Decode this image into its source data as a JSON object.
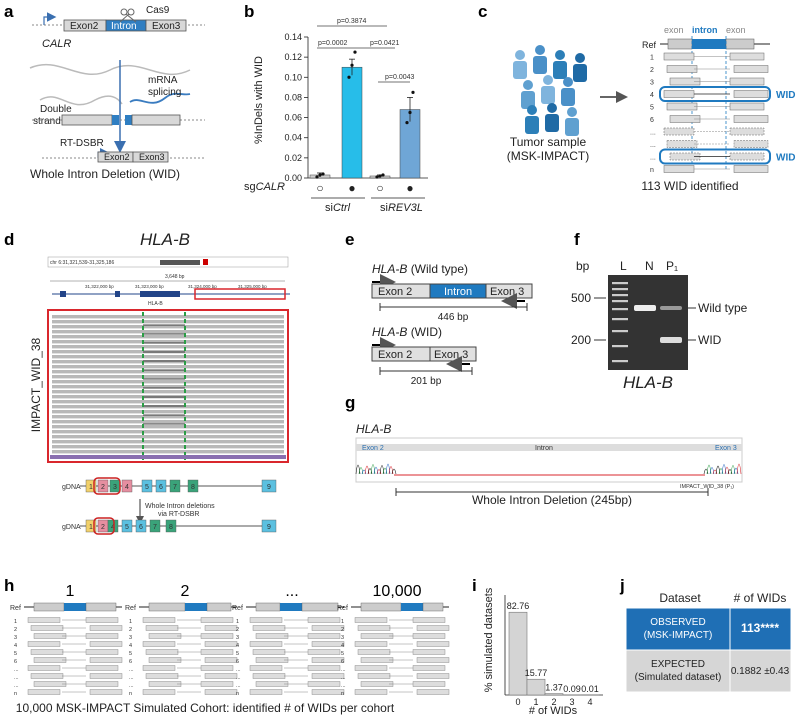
{
  "panels": {
    "a": {
      "label": "a",
      "gene": "CALR",
      "exon2": "Exon2",
      "intron": "Intron",
      "exon3": "Exon3",
      "cas9": "Cas9",
      "dsb": [
        "Double",
        "strand break"
      ],
      "mrna": [
        "mRNA",
        "splicing"
      ],
      "rtdsbr": "RT-DSBR",
      "caption": "Whole Intron Deletion (WID)"
    },
    "b": {
      "label": "b",
      "sg_label_prefix": "sg",
      "sg_label_gene": "CALR",
      "group1_prefix": "si",
      "group1_gene": "Ctrl",
      "group2_prefix": "si",
      "group2_gene": "REV3L",
      "sig": [
        "p=0.3874",
        "p=0.0002",
        "p=0.0421",
        "p=0.0043"
      ],
      "open_circle": "○",
      "filled_circle": "●"
    },
    "c": {
      "label": "c",
      "exon_left": "exon",
      "intron": "intron",
      "exon_right": "exon",
      "ref": "Ref",
      "rows": [
        "1",
        "2",
        "3",
        "4",
        "5",
        "6",
        "...",
        "...",
        "...",
        "n"
      ],
      "wid1": "WID",
      "wid2": "WID",
      "sample": [
        "Tumor sample",
        "(MSK-IMPACT)"
      ],
      "footer": "113 WID identified"
    },
    "d": {
      "label": "d",
      "title": "HLA-B",
      "locus": "chr 6:31,321,539-31,325,186",
      "span": "3,648 bp",
      "ticks": [
        "31,322,000 bp",
        "31,323,000 bp",
        "31,324,000 bp",
        "31,325,000 bp"
      ],
      "gene": "HLA-B",
      "side_label": "IMPACT_WID_38",
      "gdna": "gDNA",
      "exons_top": [
        "1",
        "2",
        "3",
        "4",
        "5",
        "6",
        "7",
        "8",
        "9"
      ],
      "exons_bottom": [
        "1",
        "2",
        "4",
        "5",
        "6",
        "7",
        "8",
        "9"
      ],
      "arrow_text": [
        "Whole Intron deletions",
        "via RT-DSBR"
      ]
    },
    "e": {
      "label": "e",
      "wt_gene": "HLA-B",
      "wt_suffix": "(Wild type)",
      "wt_exon2": "Exon 2",
      "wt_intron": "Intron",
      "wt_exon3": "Exon 3",
      "wt_size": "446 bp",
      "wid_gene": "HLA-B",
      "wid_suffix": "(WID)",
      "wid_exon2": "Exon 2",
      "wid_exon3": "Exon 3",
      "wid_size": "201 bp"
    },
    "f": {
      "label": "f",
      "bp": "bp",
      "lanes": [
        "L",
        "N",
        "P₁"
      ],
      "size500": "500",
      "size200": "200",
      "wt": "Wild type",
      "wid": "WID",
      "gene": "HLA-B"
    },
    "g": {
      "label": "g",
      "gene": "HLA-B",
      "exon2": "Exon 2",
      "intron": "Intron",
      "exon3": "Exon 3",
      "sample": "IMPACT_WID_38 (P₁)",
      "caption": "Whole Intron Deletion (245bp)"
    },
    "h": {
      "label": "h",
      "titles": [
        "1",
        "2",
        "...",
        "10,000"
      ],
      "ref": "Ref",
      "rows": [
        "1",
        "2",
        "3",
        "4",
        "5",
        "6",
        "...",
        "...",
        "...",
        "n"
      ],
      "caption": "10,000 MSK-IMPACT Simulated Cohort: identified # of WIDs per cohort"
    },
    "i": {
      "label": "i"
    },
    "j": {
      "label": "j",
      "headers": [
        "Dataset",
        "# of WIDs"
      ],
      "observed_label": [
        "OBSERVED",
        "(MSK-IMPACT)"
      ],
      "observed_value": "113****",
      "expected_label": [
        "EXPECTED",
        "(Simulated dataset)"
      ],
      "expected_value": "0.1882 ±0.43"
    }
  },
  "colors": {
    "blue": "#1f7ac0",
    "cyan": "#27bde9",
    "lightblue": "#6fa6d6",
    "grey": "#d0d0d0",
    "red": "#d9272d",
    "green": "#2a9d45"
  },
  "chart_data": [
    {
      "type": "bar",
      "panel": "b",
      "ylabel": "%InDels with WID",
      "ylim": [
        0,
        0.14
      ],
      "yticks": [
        0.0,
        0.02,
        0.04,
        0.06,
        0.08,
        0.1,
        0.12,
        0.14
      ],
      "categories": [
        "○",
        "●",
        "○",
        "●"
      ],
      "values": [
        0.003,
        0.11,
        0.002,
        0.068
      ],
      "errors": [
        0.002,
        0.008,
        0.001,
        0.012
      ],
      "points": [
        [
          0.001,
          0.003,
          0.004
        ],
        [
          0.1,
          0.112,
          0.125
        ],
        [
          0.001,
          0.002,
          0.003
        ],
        [
          0.055,
          0.065,
          0.085
        ]
      ]
    },
    {
      "type": "bar",
      "panel": "i",
      "xlabel": "# of WIDs",
      "ylabel": "% simulated datasets",
      "categories": [
        "0",
        "1",
        "2",
        "3",
        "4"
      ],
      "values": [
        82.76,
        15.77,
        1.37,
        0.09,
        0.01
      ],
      "value_labels": [
        "82.76",
        "15.77",
        "1.37",
        "0.09",
        "0.01"
      ],
      "ylim": [
        0,
        100
      ]
    }
  ]
}
